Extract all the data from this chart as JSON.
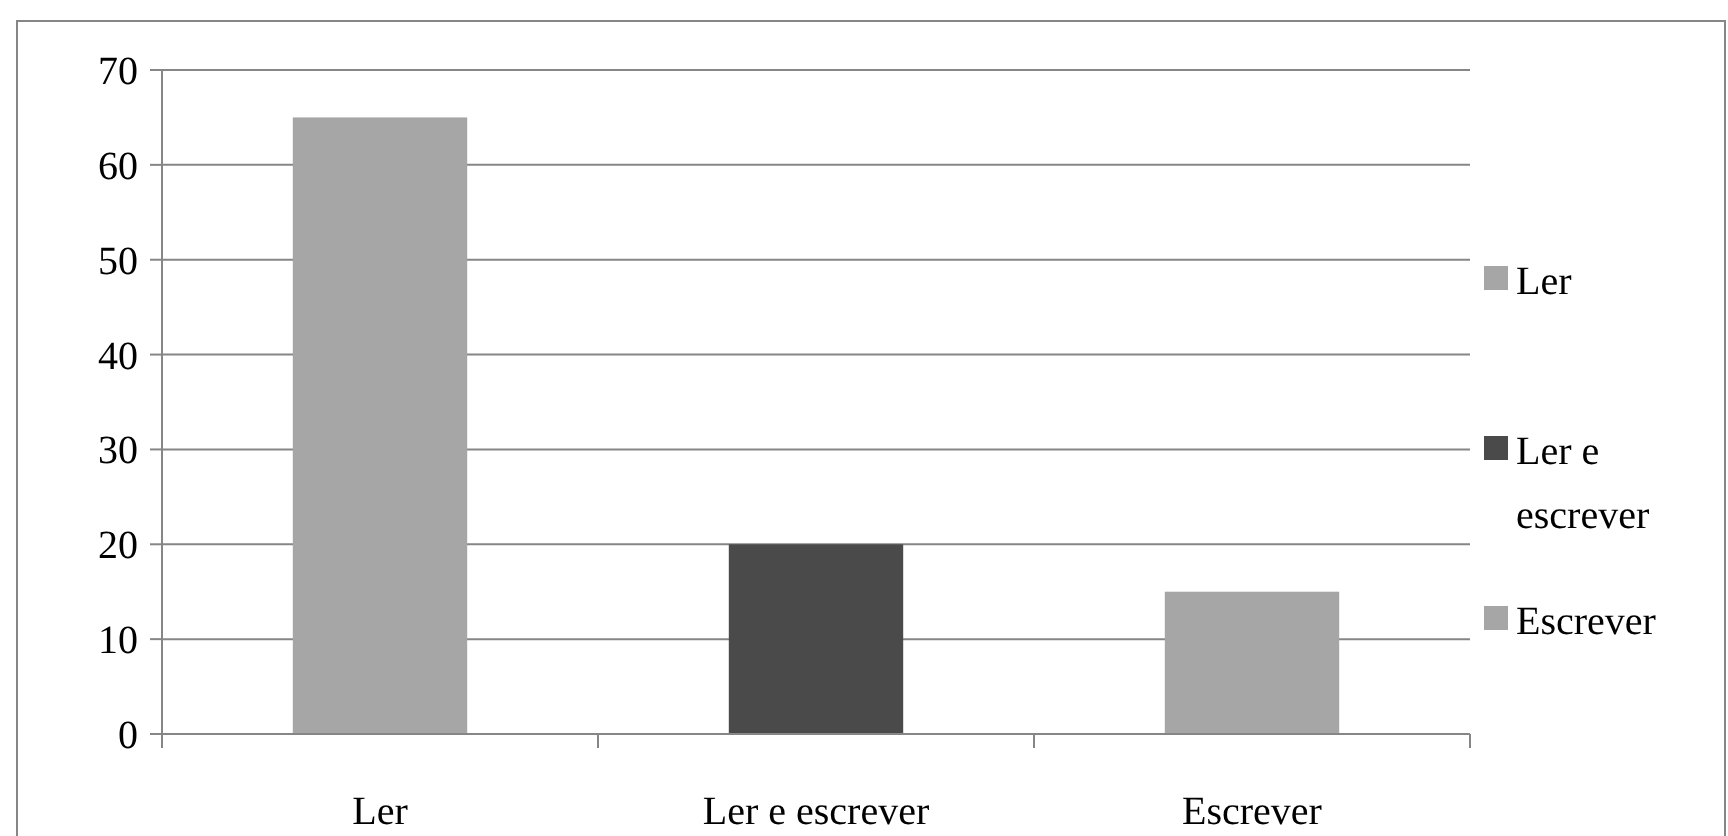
{
  "chart_data": {
    "type": "bar",
    "categories": [
      "Ler",
      "Ler e escrever",
      "Escrever"
    ],
    "series": [
      {
        "name": "Ler",
        "color": "#a6a6a6",
        "values": [
          65,
          null,
          null
        ]
      },
      {
        "name": "Ler e escrever",
        "color": "#4a4a4a",
        "values": [
          null,
          20,
          null
        ]
      },
      {
        "name": "Escrever",
        "color": "#a6a6a6",
        "values": [
          null,
          null,
          15
        ]
      }
    ],
    "ylim": [
      0,
      70
    ],
    "yticks": [
      0,
      10,
      20,
      30,
      40,
      50,
      60,
      70
    ],
    "grid": "y",
    "legend": "right"
  }
}
